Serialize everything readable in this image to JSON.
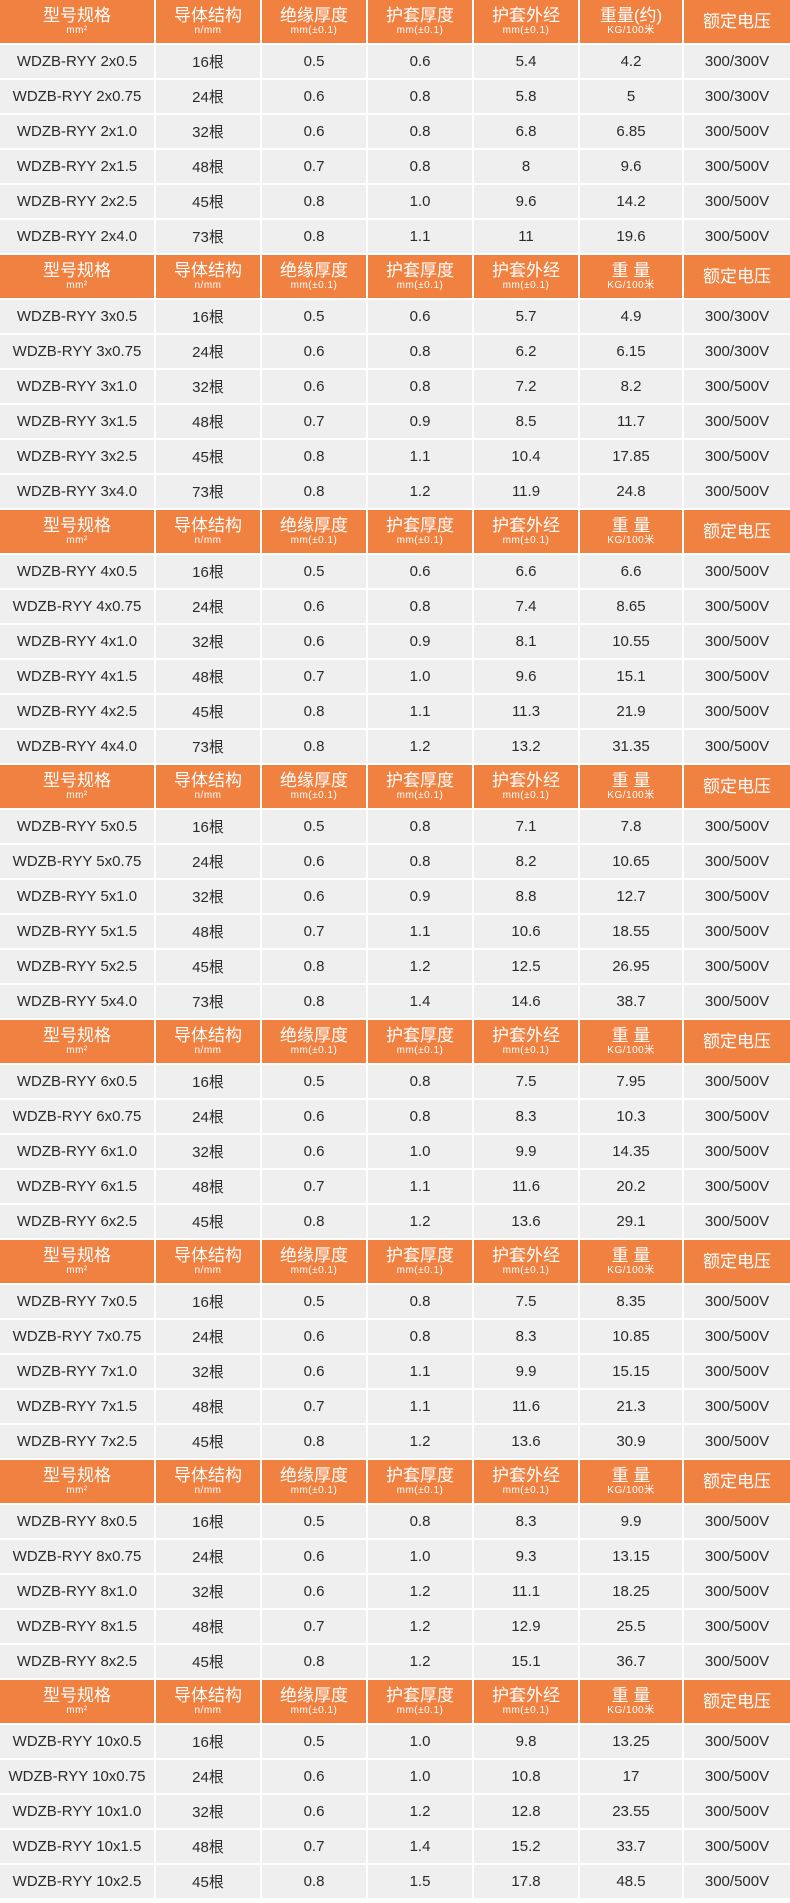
{
  "colors": {
    "header_bg": "#f08141",
    "header_text": "#ffffff",
    "row_bg": "#efefef",
    "row_text": "#2b2b2b",
    "divider": "#ffffff"
  },
  "sections": [
    {
      "header": [
        {
          "main": "型号规格",
          "sub": "mm²"
        },
        {
          "main": "导体结构",
          "sub": "n/mm"
        },
        {
          "main": "绝缘厚度",
          "sub": "mm(±0.1)"
        },
        {
          "main": "护套厚度",
          "sub": "mm(±0.1)"
        },
        {
          "main": "护套外经",
          "sub": "mm(±0.1)"
        },
        {
          "main": "重量(约)",
          "sub": "KG/100米"
        },
        {
          "main": "额定电压",
          "sub": ""
        }
      ],
      "rows": [
        [
          "WDZB-RYY 2x0.5",
          "16根",
          "0.5",
          "0.6",
          "5.4",
          "4.2",
          "300/300V"
        ],
        [
          "WDZB-RYY 2x0.75",
          "24根",
          "0.6",
          "0.8",
          "5.8",
          "5",
          "300/300V"
        ],
        [
          "WDZB-RYY 2x1.0",
          "32根",
          "0.6",
          "0.8",
          "6.8",
          "6.85",
          "300/500V"
        ],
        [
          "WDZB-RYY 2x1.5",
          "48根",
          "0.7",
          "0.8",
          "8",
          "9.6",
          "300/500V"
        ],
        [
          "WDZB-RYY 2x2.5",
          "45根",
          "0.8",
          "1.0",
          "9.6",
          "14.2",
          "300/500V"
        ],
        [
          "WDZB-RYY 2x4.0",
          "73根",
          "0.8",
          "1.1",
          "11",
          "19.6",
          "300/500V"
        ]
      ]
    },
    {
      "header": [
        {
          "main": "型号规格",
          "sub": "mm²"
        },
        {
          "main": "导体结构",
          "sub": "n/mm"
        },
        {
          "main": "绝缘厚度",
          "sub": "mm(±0.1)"
        },
        {
          "main": "护套厚度",
          "sub": "mm(±0.1)"
        },
        {
          "main": "护套外经",
          "sub": "mm(±0.1)"
        },
        {
          "main": "重 量",
          "sub": "KG/100米"
        },
        {
          "main": "额定电压",
          "sub": ""
        }
      ],
      "rows": [
        [
          "WDZB-RYY 3x0.5",
          "16根",
          "0.5",
          "0.6",
          "5.7",
          "4.9",
          "300/300V"
        ],
        [
          "WDZB-RYY 3x0.75",
          "24根",
          "0.6",
          "0.8",
          "6.2",
          "6.15",
          "300/300V"
        ],
        [
          "WDZB-RYY 3x1.0",
          "32根",
          "0.6",
          "0.8",
          "7.2",
          "8.2",
          "300/500V"
        ],
        [
          "WDZB-RYY 3x1.5",
          "48根",
          "0.7",
          "0.9",
          "8.5",
          "11.7",
          "300/500V"
        ],
        [
          "WDZB-RYY 3x2.5",
          "45根",
          "0.8",
          "1.1",
          "10.4",
          "17.85",
          "300/500V"
        ],
        [
          "WDZB-RYY 3x4.0",
          "73根",
          "0.8",
          "1.2",
          "11.9",
          "24.8",
          "300/500V"
        ]
      ]
    },
    {
      "header": [
        {
          "main": "型号规格",
          "sub": "mm²"
        },
        {
          "main": "导体结构",
          "sub": "n/mm"
        },
        {
          "main": "绝缘厚度",
          "sub": "mm(±0.1)"
        },
        {
          "main": "护套厚度",
          "sub": "mm(±0.1)"
        },
        {
          "main": "护套外经",
          "sub": "mm(±0.1)"
        },
        {
          "main": "重 量",
          "sub": "KG/100米"
        },
        {
          "main": "额定电压",
          "sub": ""
        }
      ],
      "rows": [
        [
          "WDZB-RYY 4x0.5",
          "16根",
          "0.5",
          "0.6",
          "6.6",
          "6.6",
          "300/500V"
        ],
        [
          "WDZB-RYY 4x0.75",
          "24根",
          "0.6",
          "0.8",
          "7.4",
          "8.65",
          "300/500V"
        ],
        [
          "WDZB-RYY 4x1.0",
          "32根",
          "0.6",
          "0.9",
          "8.1",
          "10.55",
          "300/500V"
        ],
        [
          "WDZB-RYY 4x1.5",
          "48根",
          "0.7",
          "1.0",
          "9.6",
          "15.1",
          "300/500V"
        ],
        [
          "WDZB-RYY 4x2.5",
          "45根",
          "0.8",
          "1.1",
          "11.3",
          "21.9",
          "300/500V"
        ],
        [
          "WDZB-RYY 4x4.0",
          "73根",
          "0.8",
          "1.2",
          "13.2",
          "31.35",
          "300/500V"
        ]
      ]
    },
    {
      "header": [
        {
          "main": "型号规格",
          "sub": "mm²"
        },
        {
          "main": "导体结构",
          "sub": "n/mm"
        },
        {
          "main": "绝缘厚度",
          "sub": "mm(±0.1)"
        },
        {
          "main": "护套厚度",
          "sub": "mm(±0.1)"
        },
        {
          "main": "护套外经",
          "sub": "mm(±0.1)"
        },
        {
          "main": "重 量",
          "sub": "KG/100米"
        },
        {
          "main": "额定电压",
          "sub": ""
        }
      ],
      "rows": [
        [
          "WDZB-RYY 5x0.5",
          "16根",
          "0.5",
          "0.8",
          "7.1",
          "7.8",
          "300/500V"
        ],
        [
          "WDZB-RYY 5x0.75",
          "24根",
          "0.6",
          "0.8",
          "8.2",
          "10.65",
          "300/500V"
        ],
        [
          "WDZB-RYY 5x1.0",
          "32根",
          "0.6",
          "0.9",
          "8.8",
          "12.7",
          "300/500V"
        ],
        [
          "WDZB-RYY 5x1.5",
          "48根",
          "0.7",
          "1.1",
          "10.6",
          "18.55",
          "300/500V"
        ],
        [
          "WDZB-RYY 5x2.5",
          "45根",
          "0.8",
          "1.2",
          "12.5",
          "26.95",
          "300/500V"
        ],
        [
          "WDZB-RYY 5x4.0",
          "73根",
          "0.8",
          "1.4",
          "14.6",
          "38.7",
          "300/500V"
        ]
      ]
    },
    {
      "header": [
        {
          "main": "型号规格",
          "sub": "mm²"
        },
        {
          "main": "导体结构",
          "sub": "n/mm"
        },
        {
          "main": "绝缘厚度",
          "sub": "mm(±0.1)"
        },
        {
          "main": "护套厚度",
          "sub": "mm(±0.1)"
        },
        {
          "main": "护套外经",
          "sub": "mm(±0.1)"
        },
        {
          "main": "重 量",
          "sub": "KG/100米"
        },
        {
          "main": "额定电压",
          "sub": ""
        }
      ],
      "rows": [
        [
          "WDZB-RYY 6x0.5",
          "16根",
          "0.5",
          "0.8",
          "7.5",
          "7.95",
          "300/500V"
        ],
        [
          "WDZB-RYY 6x0.75",
          "24根",
          "0.6",
          "0.8",
          "8.3",
          "10.3",
          "300/500V"
        ],
        [
          "WDZB-RYY 6x1.0",
          "32根",
          "0.6",
          "1.0",
          "9.9",
          "14.35",
          "300/500V"
        ],
        [
          "WDZB-RYY 6x1.5",
          "48根",
          "0.7",
          "1.1",
          "11.6",
          "20.2",
          "300/500V"
        ],
        [
          "WDZB-RYY 6x2.5",
          "45根",
          "0.8",
          "1.2",
          "13.6",
          "29.1",
          "300/500V"
        ]
      ]
    },
    {
      "header": [
        {
          "main": "型号规格",
          "sub": "mm²"
        },
        {
          "main": "导体结构",
          "sub": "n/mm"
        },
        {
          "main": "绝缘厚度",
          "sub": "mm(±0.1)"
        },
        {
          "main": "护套厚度",
          "sub": "mm(±0.1)"
        },
        {
          "main": "护套外经",
          "sub": "mm(±0.1)"
        },
        {
          "main": "重 量",
          "sub": "KG/100米"
        },
        {
          "main": "额定电压",
          "sub": ""
        }
      ],
      "rows": [
        [
          "WDZB-RYY 7x0.5",
          "16根",
          "0.5",
          "0.8",
          "7.5",
          "8.35",
          "300/500V"
        ],
        [
          "WDZB-RYY 7x0.75",
          "24根",
          "0.6",
          "0.8",
          "8.3",
          "10.85",
          "300/500V"
        ],
        [
          "WDZB-RYY 7x1.0",
          "32根",
          "0.6",
          "1.1",
          "9.9",
          "15.15",
          "300/500V"
        ],
        [
          "WDZB-RYY 7x1.5",
          "48根",
          "0.7",
          "1.1",
          "11.6",
          "21.3",
          "300/500V"
        ],
        [
          "WDZB-RYY 7x2.5",
          "45根",
          "0.8",
          "1.2",
          "13.6",
          "30.9",
          "300/500V"
        ]
      ]
    },
    {
      "header": [
        {
          "main": "型号规格",
          "sub": "mm²"
        },
        {
          "main": "导体结构",
          "sub": "n/mm"
        },
        {
          "main": "绝缘厚度",
          "sub": "mm(±0.1)"
        },
        {
          "main": "护套厚度",
          "sub": "mm(±0.1)"
        },
        {
          "main": "护套外经",
          "sub": "mm(±0.1)"
        },
        {
          "main": "重 量",
          "sub": "KG/100米"
        },
        {
          "main": "额定电压",
          "sub": ""
        }
      ],
      "rows": [
        [
          "WDZB-RYY 8x0.5",
          "16根",
          "0.5",
          "0.8",
          "8.3",
          "9.9",
          "300/500V"
        ],
        [
          "WDZB-RYY 8x0.75",
          "24根",
          "0.6",
          "1.0",
          "9.3",
          "13.15",
          "300/500V"
        ],
        [
          "WDZB-RYY 8x1.0",
          "32根",
          "0.6",
          "1.2",
          "11.1",
          "18.25",
          "300/500V"
        ],
        [
          "WDZB-RYY 8x1.5",
          "48根",
          "0.7",
          "1.2",
          "12.9",
          "25.5",
          "300/500V"
        ],
        [
          "WDZB-RYY 8x2.5",
          "45根",
          "0.8",
          "1.2",
          "15.1",
          "36.7",
          "300/500V"
        ]
      ]
    },
    {
      "header": [
        {
          "main": "型号规格",
          "sub": "mm²"
        },
        {
          "main": "导体结构",
          "sub": "n/mm"
        },
        {
          "main": "绝缘厚度",
          "sub": "mm(±0.1)"
        },
        {
          "main": "护套厚度",
          "sub": "mm(±0.1)"
        },
        {
          "main": "护套外经",
          "sub": "mm(±0.1)"
        },
        {
          "main": "重 量",
          "sub": "KG/100米"
        },
        {
          "main": "额定电压",
          "sub": ""
        }
      ],
      "rows": [
        [
          "WDZB-RYY 10x0.5",
          "16根",
          "0.5",
          "1.0",
          "9.8",
          "13.25",
          "300/500V"
        ],
        [
          "WDZB-RYY 10x0.75",
          "24根",
          "0.6",
          "1.0",
          "10.8",
          "17",
          "300/500V"
        ],
        [
          "WDZB-RYY 10x1.0",
          "32根",
          "0.6",
          "1.2",
          "12.8",
          "23.55",
          "300/500V"
        ],
        [
          "WDZB-RYY 10x1.5",
          "48根",
          "0.7",
          "1.4",
          "15.2",
          "33.7",
          "300/500V"
        ],
        [
          "WDZB-RYY 10x2.5",
          "45根",
          "0.8",
          "1.5",
          "17.8",
          "48.5",
          "300/500V"
        ]
      ]
    }
  ]
}
